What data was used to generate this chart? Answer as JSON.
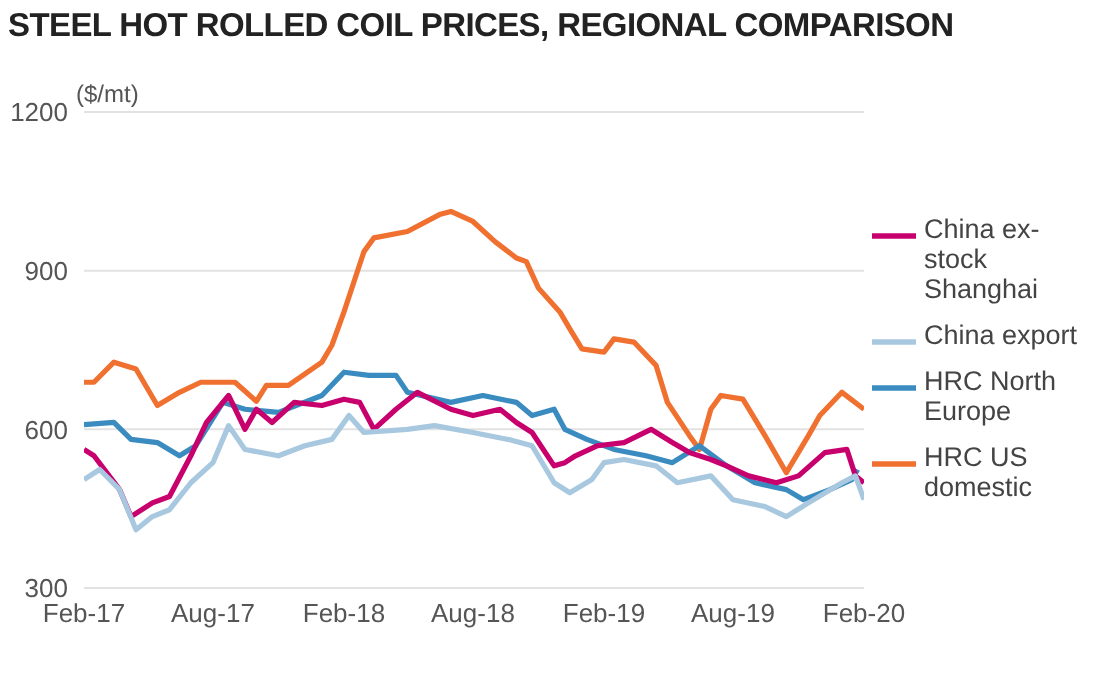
{
  "chart_data": {
    "type": "line",
    "title": "STEEL HOT ROLLED COIL PRICES, REGIONAL COMPARISON",
    "ylabel": "($/mt)",
    "xlim": [
      "2017-02-01",
      "2020-02-01"
    ],
    "xticks": [
      {
        "value": "2017-02-01",
        "label": "Feb-17"
      },
      {
        "value": "2017-08-01",
        "label": "Aug-17"
      },
      {
        "value": "2018-02-01",
        "label": "Feb-18"
      },
      {
        "value": "2018-08-01",
        "label": "Aug-18"
      },
      {
        "value": "2019-02-01",
        "label": "Feb-19"
      },
      {
        "value": "2019-08-01",
        "label": "Aug-19"
      },
      {
        "value": "2020-02-01",
        "label": "Feb-20"
      }
    ],
    "ylim": [
      300,
      1200
    ],
    "yticks": [
      300,
      600,
      900,
      1200
    ],
    "grid": "y",
    "legend": "right",
    "marker": "none",
    "line_style": "solid",
    "series": [
      {
        "name": "HRC US domestic",
        "color": "#f07030",
        "x": [
          "2017-02-01",
          "2017-02-15",
          "2017-03-15",
          "2017-04-15",
          "2017-05-15",
          "2017-06-15",
          "2017-07-15",
          "2017-09-01",
          "2017-10-01",
          "2017-10-15",
          "2017-11-15",
          "2018-01-01",
          "2018-01-15",
          "2018-02-01",
          "2018-02-15",
          "2018-03-01",
          "2018-03-15",
          "2018-05-01",
          "2018-06-15",
          "2018-07-01",
          "2018-08-01",
          "2018-09-01",
          "2018-10-01",
          "2018-10-15",
          "2018-11-01",
          "2018-12-01",
          "2018-12-15",
          "2019-01-01",
          "2019-02-01",
          "2019-02-15",
          "2019-03-15",
          "2019-04-15",
          "2019-05-01",
          "2019-06-01",
          "2019-06-15",
          "2019-07-01",
          "2019-07-15",
          "2019-08-15",
          "2019-09-15",
          "2019-10-15",
          "2019-11-15",
          "2019-12-01",
          "2020-01-01",
          "2020-02-01"
        ],
        "values": [
          689,
          689,
          727,
          714,
          645,
          670,
          689,
          689,
          653,
          683,
          683,
          727,
          759,
          822,
          879,
          936,
          962,
          974,
          1006,
          1012,
          993,
          955,
          924,
          917,
          867,
          822,
          790,
          752,
          746,
          771,
          765,
          721,
          651,
          588,
          562,
          638,
          664,
          657,
          588,
          518,
          588,
          626,
          670,
          638
        ]
      },
      {
        "name": "HRC North Europe",
        "color": "#3a8cc0",
        "x": [
          "2017-02-01",
          "2017-03-15",
          "2017-04-08",
          "2017-05-15",
          "2017-06-15",
          "2017-07-08",
          "2017-08-15",
          "2017-09-15",
          "2017-11-01",
          "2018-01-01",
          "2018-02-01",
          "2018-03-08",
          "2018-04-15",
          "2018-05-01",
          "2018-07-01",
          "2018-08-15",
          "2018-10-01",
          "2018-10-23",
          "2018-11-23",
          "2018-12-08",
          "2019-01-08",
          "2019-02-15",
          "2019-04-01",
          "2019-05-08",
          "2019-06-15",
          "2019-07-23",
          "2019-09-01",
          "2019-10-15",
          "2019-11-08",
          "2019-12-15",
          "2020-01-15",
          "2020-01-23"
        ],
        "values": [
          609,
          613,
          581,
          575,
          550,
          569,
          651,
          638,
          632,
          664,
          708,
          702,
          702,
          670,
          651,
          664,
          651,
          626,
          638,
          600,
          581,
          562,
          550,
          537,
          569,
          531,
          499,
          486,
          467,
          486,
          505,
          524
        ]
      },
      {
        "name": "China ex-stock Shanghai",
        "color": "#c8006e",
        "x": [
          "2017-02-01",
          "2017-02-15",
          "2017-03-23",
          "2017-04-08",
          "2017-05-08",
          "2017-06-01",
          "2017-07-01",
          "2017-07-23",
          "2017-08-23",
          "2017-09-15",
          "2017-10-01",
          "2017-10-23",
          "2017-11-23",
          "2018-01-01",
          "2018-02-01",
          "2018-02-23",
          "2018-03-15",
          "2018-04-15",
          "2018-05-15",
          "2018-07-01",
          "2018-08-01",
          "2018-09-08",
          "2018-10-01",
          "2018-10-23",
          "2018-11-23",
          "2018-12-08",
          "2018-12-23",
          "2019-01-23",
          "2019-03-01",
          "2019-04-08",
          "2019-05-08",
          "2019-06-01",
          "2019-07-01",
          "2019-07-23",
          "2019-08-23",
          "2019-10-01",
          "2019-11-01",
          "2019-12-08",
          "2020-01-08",
          "2020-01-20",
          "2020-02-01"
        ],
        "values": [
          562,
          550,
          486,
          435,
          461,
          473,
          550,
          613,
          664,
          600,
          638,
          613,
          651,
          645,
          657,
          651,
          600,
          638,
          670,
          638,
          626,
          638,
          613,
          594,
          531,
          537,
          550,
          569,
          575,
          600,
          575,
          556,
          543,
          531,
          512,
          499,
          512,
          556,
          562,
          512,
          499
        ]
      },
      {
        "name": "China export",
        "color": "#a8c8e0",
        "x": [
          "2017-02-01",
          "2017-02-23",
          "2017-03-23",
          "2017-04-15",
          "2017-05-08",
          "2017-06-01",
          "2017-07-01",
          "2017-08-01",
          "2017-08-23",
          "2017-09-15",
          "2017-11-01",
          "2017-12-08",
          "2018-01-15",
          "2018-02-08",
          "2018-03-01",
          "2018-05-01",
          "2018-06-08",
          "2018-08-01",
          "2018-09-23",
          "2018-10-23",
          "2018-11-23",
          "2018-12-15",
          "2019-01-15",
          "2019-02-01",
          "2019-03-01",
          "2019-04-15",
          "2019-05-15",
          "2019-07-01",
          "2019-08-01",
          "2019-09-15",
          "2019-10-15",
          "2019-11-15",
          "2020-01-01",
          "2020-01-20",
          "2020-02-01"
        ],
        "values": [
          505,
          524,
          486,
          410,
          435,
          448,
          499,
          537,
          607,
          562,
          550,
          569,
          581,
          626,
          594,
          600,
          607,
          594,
          580,
          569,
          499,
          480,
          505,
          537,
          543,
          531,
          499,
          512,
          467,
          454,
          435,
          461,
          499,
          512,
          467
        ]
      }
    ]
  }
}
